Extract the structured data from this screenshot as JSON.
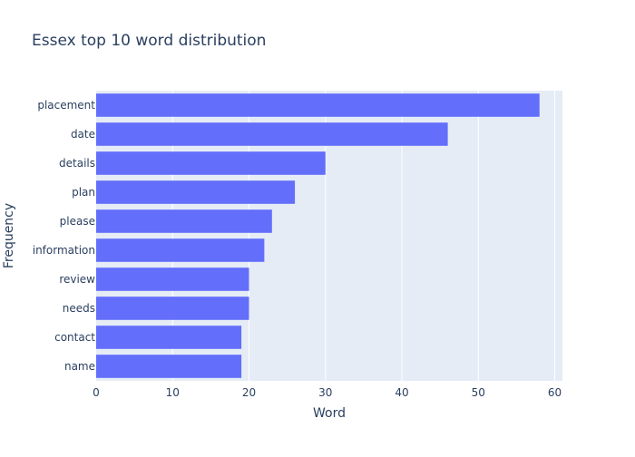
{
  "chart_data": {
    "type": "bar",
    "orientation": "horizontal",
    "title": "Essex top 10 word distribution",
    "xlabel": "Word",
    "ylabel": "Frequency",
    "categories": [
      "placement",
      "date",
      "details",
      "plan",
      "please",
      "information",
      "review",
      "needs",
      "contact",
      "name"
    ],
    "values": [
      58,
      46,
      30,
      26,
      23,
      22,
      20,
      20,
      19,
      19
    ],
    "xlim": [
      0,
      61
    ],
    "xticks": [
      0,
      10,
      20,
      30,
      40,
      50,
      60
    ],
    "grid": true,
    "bar_color": "#636efa",
    "plot_bg": "#e5ecf6",
    "text_color": "#2a3f5f"
  }
}
